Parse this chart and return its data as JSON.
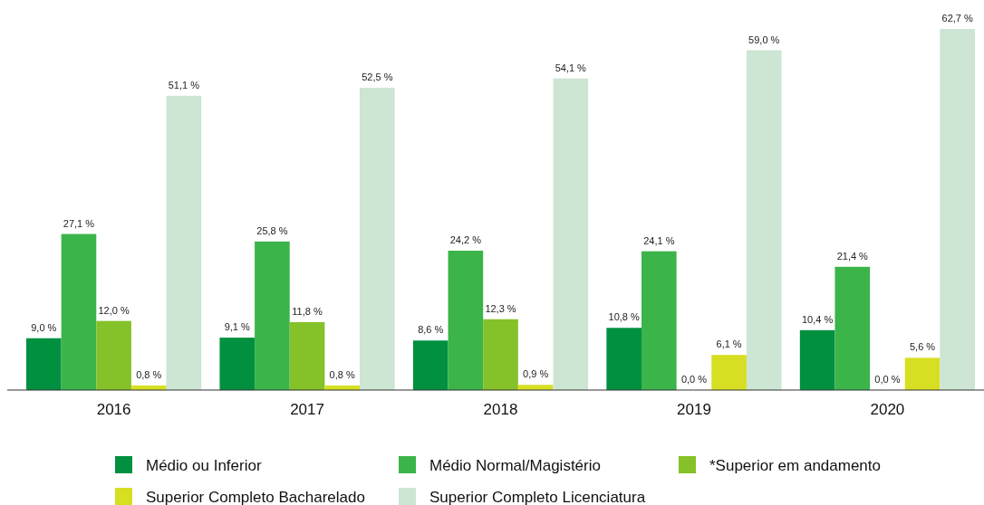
{
  "chart_data": {
    "type": "bar",
    "categories": [
      "2016",
      "2017",
      "2018",
      "2019",
      "2020"
    ],
    "legend": "bottom",
    "series": [
      {
        "name": "Médio ou Inferior",
        "color": "#009040",
        "values": [
          9.0,
          9.1,
          8.6,
          10.8,
          10.4
        ],
        "value_labels": [
          "9,0 %",
          "9,1 %",
          "8,6 %",
          "10,8 %",
          "10,4 %"
        ]
      },
      {
        "name": "Médio Normal/Magistério",
        "color": "#3bb44a",
        "values": [
          27.1,
          25.8,
          24.2,
          24.1,
          21.4
        ],
        "value_labels": [
          "27,1 %",
          "25,8 %",
          "24,2 %",
          "24,1 %",
          "21,4 %"
        ]
      },
      {
        "name": "*Superior em andamento",
        "color": "#85c129",
        "values": [
          12.0,
          11.8,
          12.3,
          0.0,
          0.0
        ],
        "value_labels": [
          "12,0 %",
          "11,8 %",
          "12,3 %",
          "0,0 %",
          "0,0 %"
        ]
      },
      {
        "name": "Superior Completo Bacharelado",
        "color": "#d7df22",
        "values": [
          0.8,
          0.8,
          0.9,
          6.1,
          5.6
        ],
        "value_labels": [
          "0,8 %",
          "0,8 %",
          "0,9 %",
          "6,1 %",
          "5,6 %"
        ]
      },
      {
        "name": "Superior Completo Licenciatura",
        "color": "#cde5d3",
        "values": [
          51.1,
          52.5,
          54.1,
          59.0,
          62.7
        ],
        "value_labels": [
          "51,1 %",
          "52,5 %",
          "54,1 %",
          "59,0 %",
          "62,7 %"
        ]
      }
    ]
  }
}
